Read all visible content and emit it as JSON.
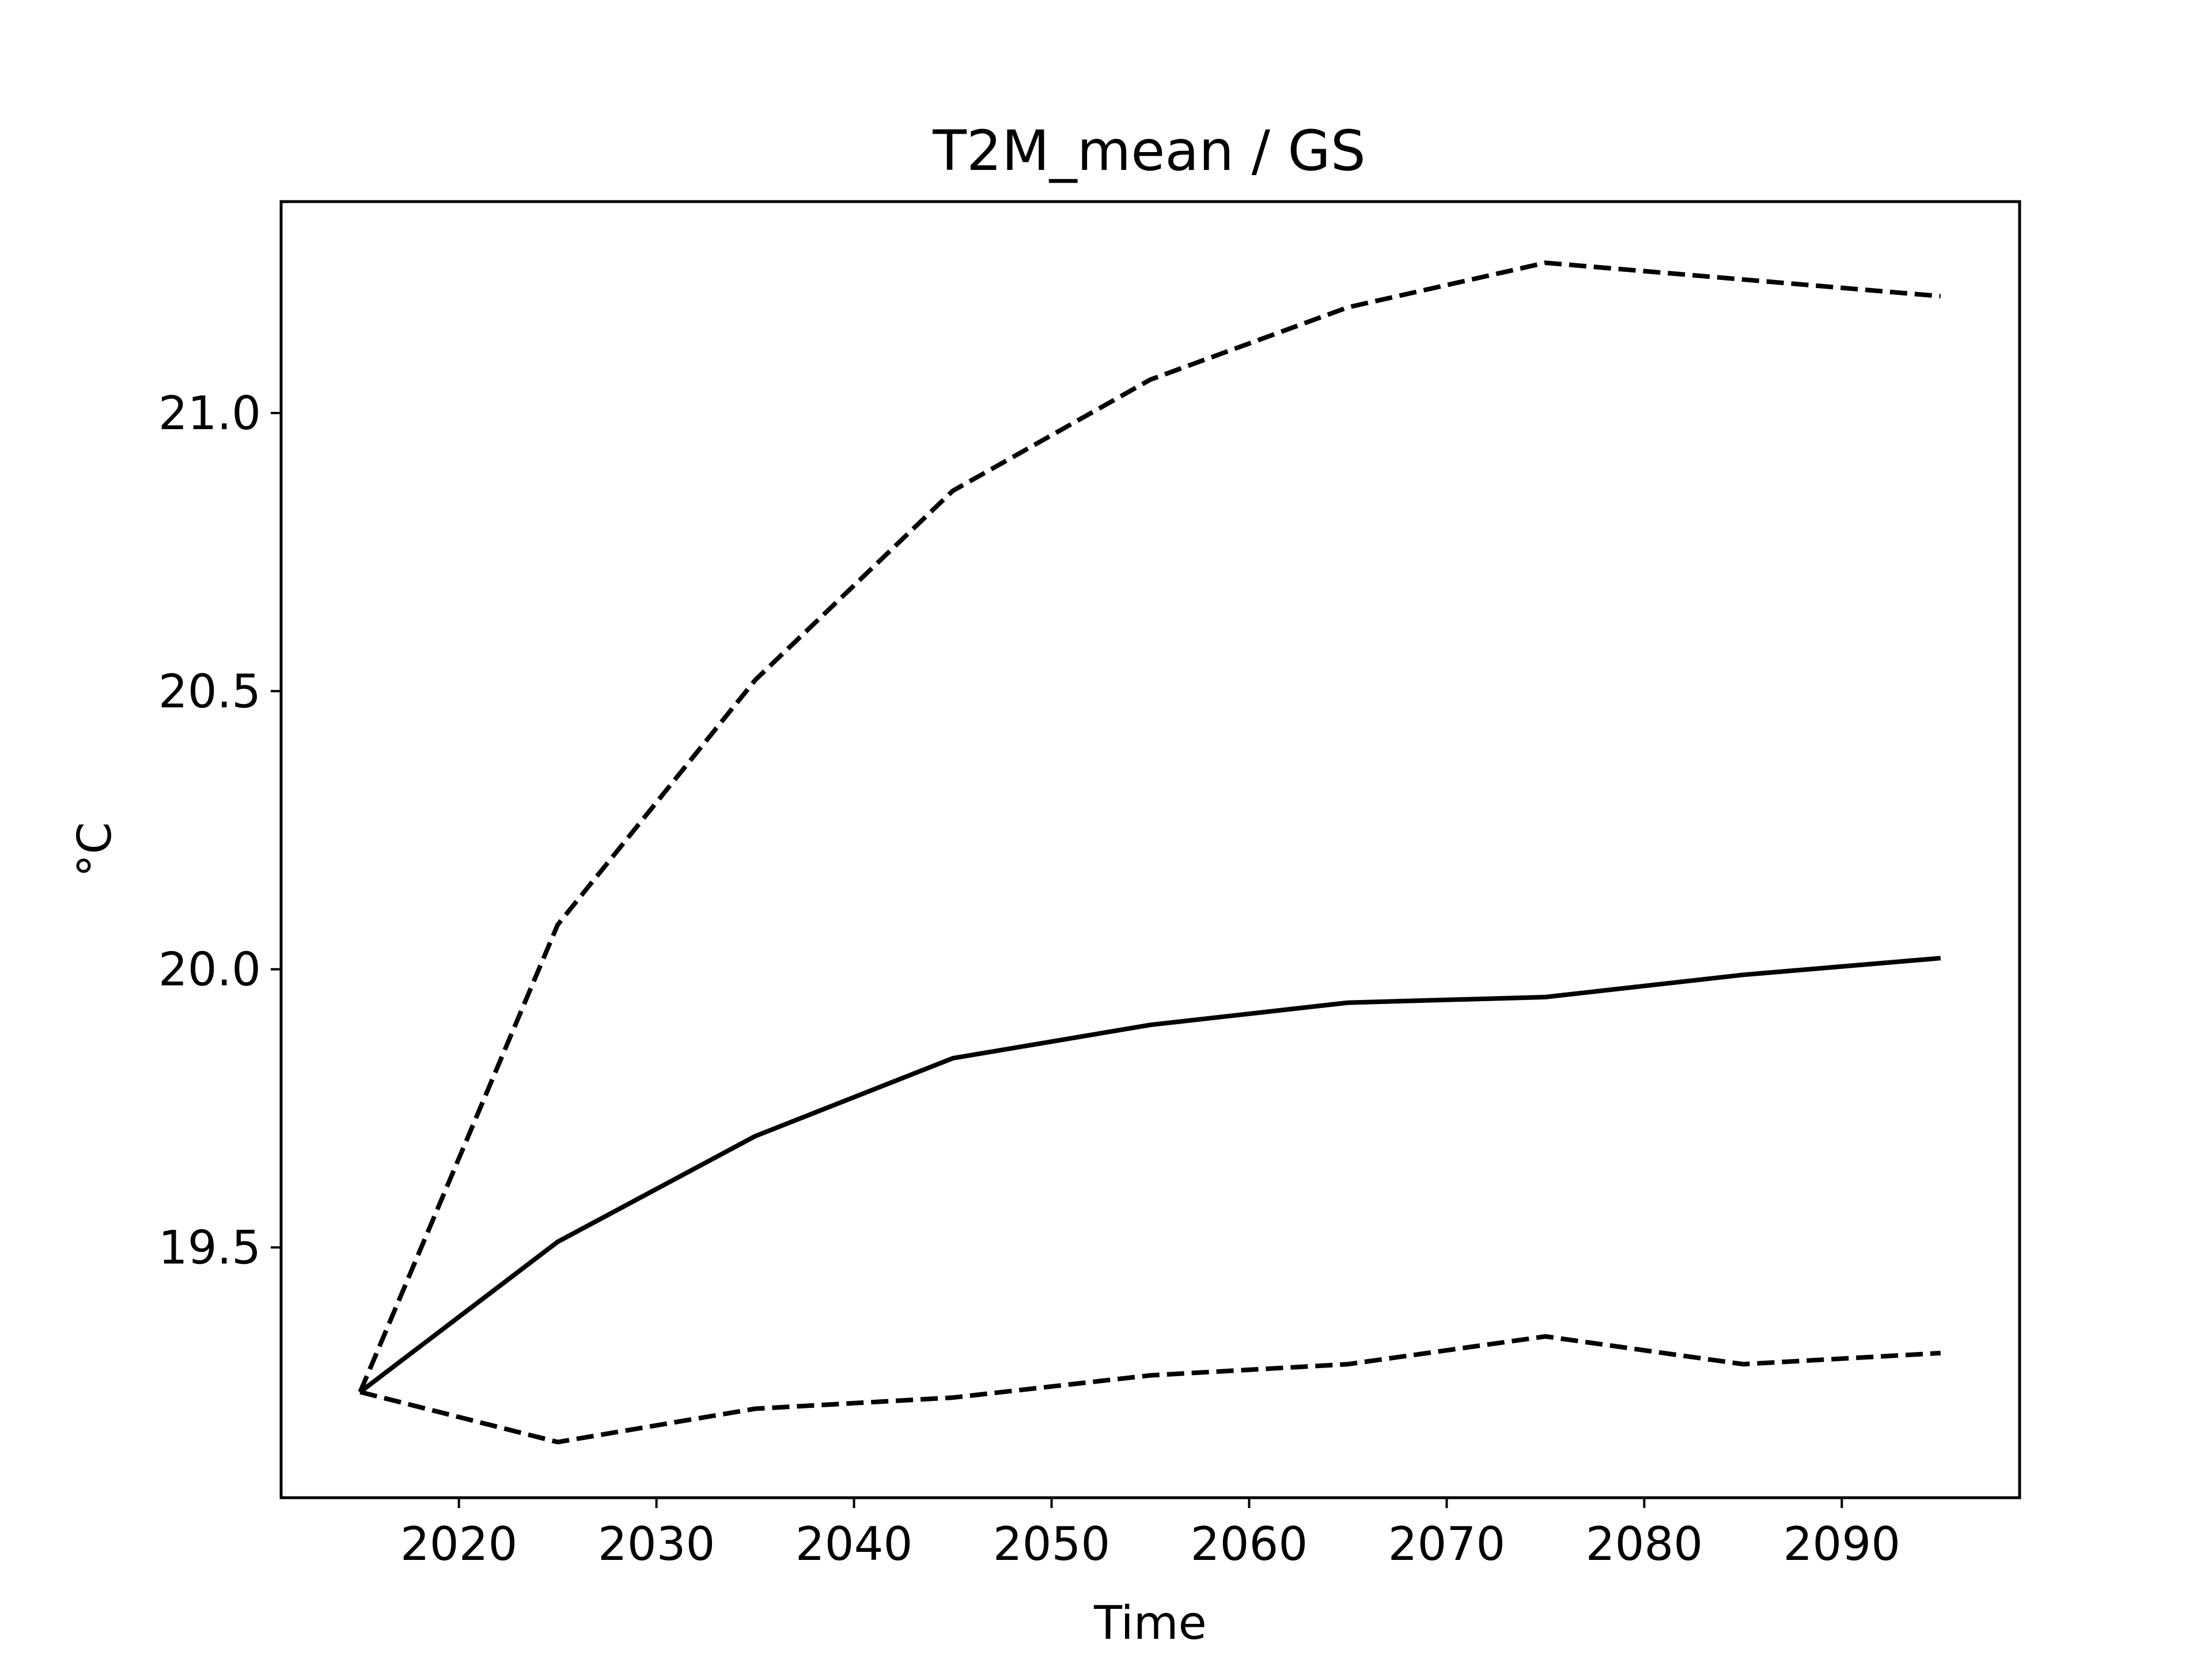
{
  "chart_data": {
    "type": "line",
    "title": "T2M_mean / GS",
    "xlabel": "Time",
    "ylabel": "°C",
    "xlim": [
      2011,
      2099
    ],
    "ylim": [
      19.05,
      21.38
    ],
    "xticks": [
      2020,
      2030,
      2040,
      2050,
      2060,
      2070,
      2080,
      2090
    ],
    "xtick_labels": [
      "2020",
      "2030",
      "2040",
      "2050",
      "2060",
      "2070",
      "2080",
      "2090"
    ],
    "yticks": [
      19.5,
      20.0,
      20.5,
      21.0
    ],
    "ytick_labels": [
      "19.5",
      "20.0",
      "20.5",
      "21.0"
    ],
    "grid": false,
    "legend": "none",
    "x": [
      2015,
      2025,
      2035,
      2045,
      2055,
      2065,
      2075,
      2085,
      2095
    ],
    "series": [
      {
        "style": "solid",
        "color": "#000000",
        "values": [
          19.24,
          19.51,
          19.7,
          19.84,
          19.9,
          19.94,
          19.95,
          19.99,
          20.02
        ]
      },
      {
        "style": "dashed",
        "color": "#000000",
        "values": [
          19.24,
          20.08,
          20.52,
          20.86,
          21.06,
          21.19,
          21.27,
          21.24,
          21.21
        ]
      },
      {
        "style": "dashed",
        "color": "#000000",
        "values": [
          19.24,
          19.15,
          19.21,
          19.23,
          19.27,
          19.29,
          19.34,
          19.29,
          19.31
        ]
      }
    ]
  }
}
